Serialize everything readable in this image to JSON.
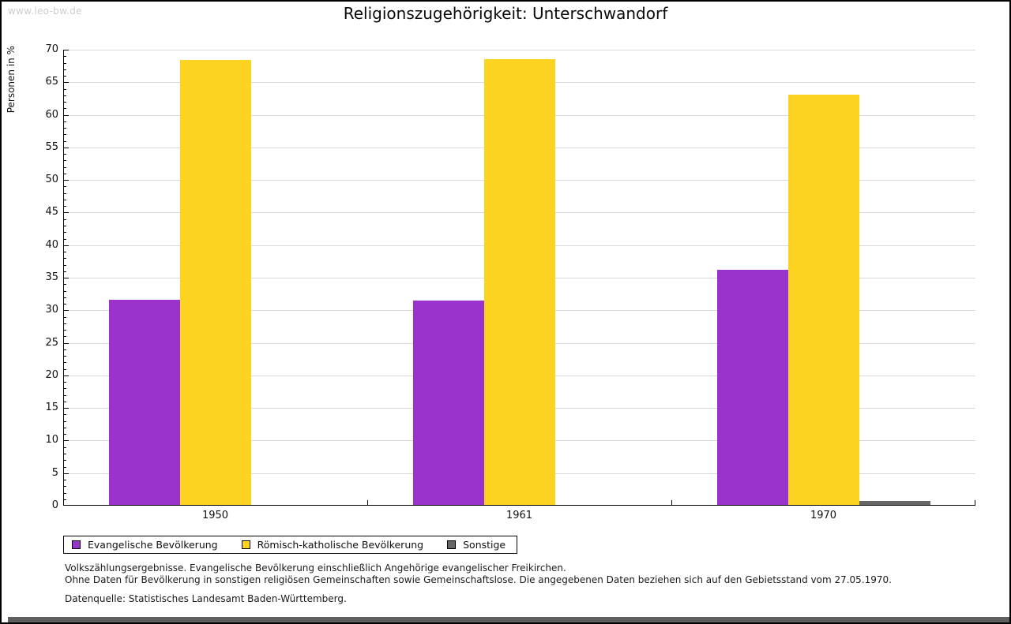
{
  "watermark": "www.leo-bw.de",
  "title": "Religionszugehörigkeit: Unterschwandorf",
  "chart_data": {
    "type": "bar",
    "title": "Religionszugehörigkeit: Unterschwandorf",
    "xlabel": "",
    "ylabel": "Personen in %",
    "categories": [
      "1950",
      "1961",
      "1970"
    ],
    "series": [
      {
        "name": "Evangelische Bevölkerung",
        "color": "#9933cc",
        "values": [
          31.6,
          31.5,
          36.2
        ]
      },
      {
        "name": "Römisch-katholische Bevölkerung",
        "color": "#fdd321",
        "values": [
          68.4,
          68.5,
          63.1
        ]
      },
      {
        "name": "Sonstige",
        "color": "#666666",
        "values": [
          0,
          0,
          0.7
        ]
      }
    ],
    "ylim": [
      0,
      70
    ],
    "ytick_step": 5,
    "minor_tick_step": 1,
    "grid": true,
    "legend_position": "bottom"
  },
  "footnotes": {
    "line1": "Volkszählungsergebnisse. Evangelische Bevölkerung einschließlich Angehörige evangelischer Freikirchen.",
    "line2": "Ohne Daten für Bevölkerung in sonstigen religiösen Gemeinschaften sowie Gemeinschaftslose. Die angegebenen Daten beziehen sich auf den Gebietsstand vom 27.05.1970.",
    "source": "Datenquelle: Statistisches Landesamt Baden-Württemberg."
  },
  "colors": {
    "gridline": "#d9d9d9",
    "axis": "#000000",
    "watermark_text": "#cccccc",
    "frame_shadow": "#5f5f5f"
  }
}
